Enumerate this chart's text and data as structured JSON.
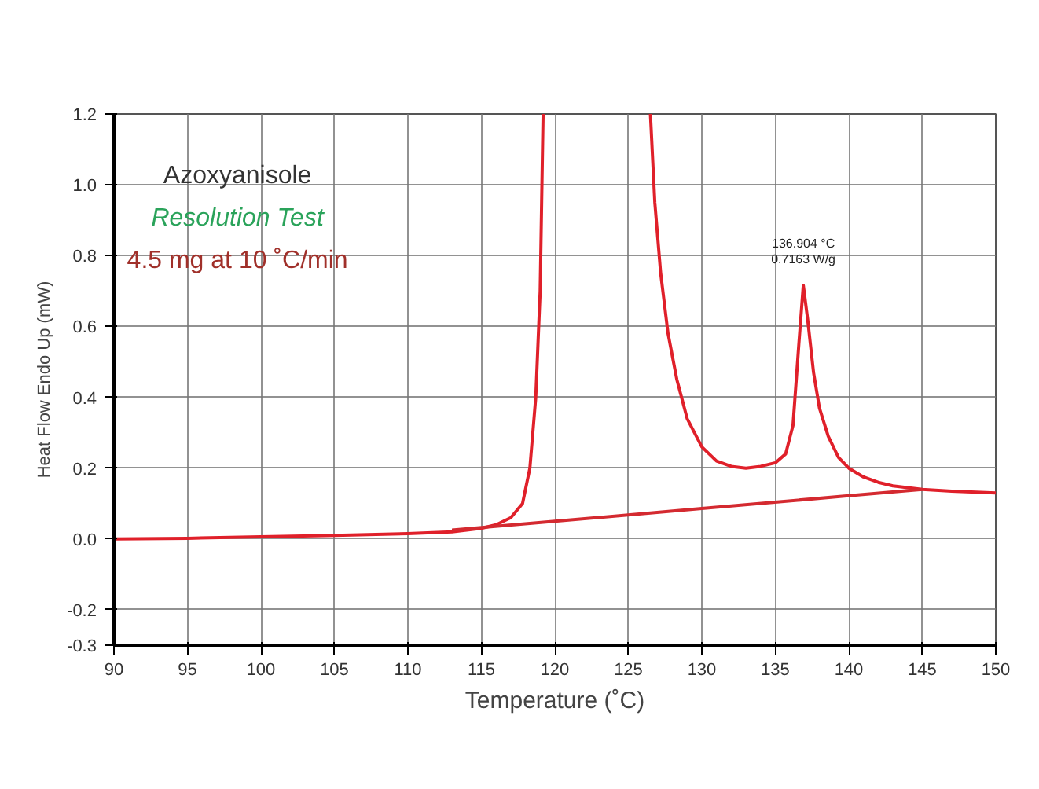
{
  "chart_data": {
    "type": "line",
    "xlabel": "Temperature (˚C)",
    "ylabel": "Heat Flow Endo Up (mW)",
    "xlim": [
      90,
      150
    ],
    "ylim": [
      -0.3,
      1.2
    ],
    "xticks": [
      90,
      95,
      100,
      105,
      110,
      115,
      120,
      125,
      130,
      135,
      140,
      145,
      150
    ],
    "yticks": [
      {
        "value": -0.3,
        "label": "-0.3"
      },
      {
        "value": -0.2,
        "label": "-0.2"
      },
      {
        "value": 0,
        "label": "0.0"
      },
      {
        "value": 0.2,
        "label": "0.2"
      },
      {
        "value": 0.4,
        "label": "0.4"
      },
      {
        "value": 0.6,
        "label": "0.6"
      },
      {
        "value": 0.8,
        "label": "0.8"
      },
      {
        "value": 1.0,
        "label": "1.0"
      },
      {
        "value": 1.2,
        "label": "1.2"
      }
    ],
    "grid": true,
    "marker": "none",
    "line_style": "solid",
    "series": [
      {
        "color": "#e0202a",
        "x": [
          90,
          95,
          100,
          105,
          110,
          113,
          115,
          116,
          117,
          117.8,
          118.3,
          118.7,
          119,
          119.2,
          123,
          126.5,
          126.8,
          127.2,
          127.7,
          128.3,
          129,
          130,
          131,
          132,
          133,
          134,
          135,
          135.7,
          136.2,
          136.6,
          136.904,
          137.2,
          137.6,
          138,
          138.6,
          139.3,
          140,
          141,
          142,
          143,
          144,
          145,
          147,
          150
        ],
        "values": [
          0,
          0.002,
          0.006,
          0.01,
          0.015,
          0.02,
          0.03,
          0.04,
          0.06,
          0.1,
          0.2,
          0.4,
          0.7,
          1.2,
          null,
          1.2,
          0.95,
          0.75,
          0.58,
          0.45,
          0.34,
          0.26,
          0.22,
          0.205,
          0.2,
          0.205,
          0.215,
          0.24,
          0.32,
          0.55,
          0.7163,
          0.62,
          0.47,
          0.37,
          0.29,
          0.23,
          0.2,
          0.175,
          0.16,
          0.15,
          0.145,
          0.14,
          0.135,
          0.13
        ]
      },
      {
        "color": "#d42a30",
        "x": [
          113,
          120,
          130,
          140,
          145
        ],
        "values": [
          0.025,
          0.05,
          0.086,
          0.122,
          0.14
        ]
      }
    ],
    "annotations": [
      "Azoxyanisole",
      "Resolution Test",
      "4.5 mg at 10 ˚C/min",
      {
        "text": "136.904 °C\n0.7163 W/g",
        "x": 136.904,
        "y": 0.7163
      }
    ]
  }
}
